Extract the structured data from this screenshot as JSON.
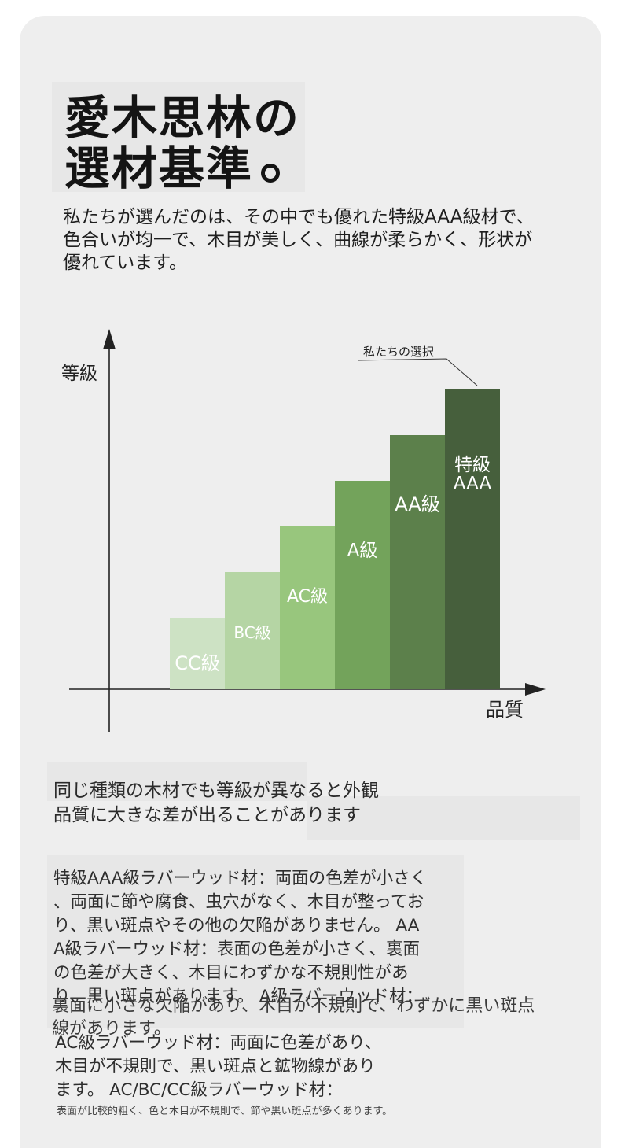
{
  "title": {
    "line1": "愛木思林の",
    "line2": "選材基準"
  },
  "intro": "私たちが選んだのは、その中でも優れた特級AAA級材で、色合いが均一で、木目が美しく、曲線が柔らかく、形状が優れています。",
  "chart_data": {
    "type": "bar",
    "ylabel": "等級",
    "xlabel": "品質",
    "annotation": "私たちの選択",
    "categories": [
      "CC級",
      "BC級",
      "AC級",
      "A級",
      "AA級",
      "特級AAA"
    ],
    "values": [
      1,
      2,
      3,
      4,
      5,
      6
    ],
    "colors": [
      "#cde2c4",
      "#b5d5a4",
      "#98c67d",
      "#73a35b",
      "#5c804b",
      "#465f3c"
    ],
    "label_lines": [
      [
        "CC級"
      ],
      [
        "BC級"
      ],
      [
        "AC級"
      ],
      [
        "A級"
      ],
      [
        "AA級"
      ],
      [
        "特級",
        "AAA"
      ]
    ]
  },
  "note": {
    "line1": "同じ種類の木材でも等級が異なると外観",
    "line2": "品質に大きな差が出ることがあります"
  },
  "details": {
    "lines": [
      "特級AAA級ラバーウッド材：両面の色差が小さく",
      "、両面に節や腐食、虫穴がなく、木目が整ってお",
      "り、黒い斑点やその他の欠陥がありません。 AA",
      "A級ラバーウッド材：表面の色差が小さく、裏面",
      "の色差が大きく、木目にわずかな不規則性があ",
      "り、黒い斑点があります。 A級ラバーウッド材："
    ],
    "overlap1": "裏面に小さな欠陥があり、木目が不規則で、わずかに黒い斑点",
    "overlap2": "線があります。",
    "lines2": [
      "AC級ラバーウッド材：両面に色差があり、",
      "木目が不規則で、黒い斑点と鉱物線があり",
      "ます。 AC/BC/CC級ラバーウッド材："
    ],
    "small": "表面が比較的粗く、色と木目が不規則で、節や黒い斑点が多くあります。"
  }
}
